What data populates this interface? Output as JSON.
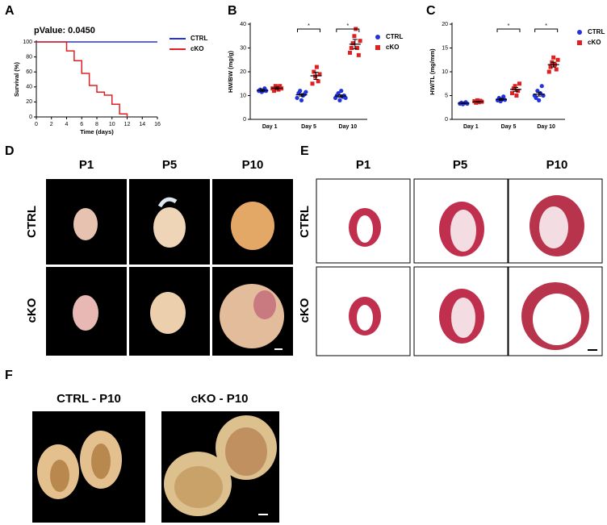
{
  "chart_data": [
    {
      "type": "line",
      "step": true,
      "title": "pValue: 0.0450",
      "xlabel": "Time (days)",
      "ylabel": "Survival (%)",
      "xlim": [
        0,
        16
      ],
      "xticks": [
        0,
        2,
        4,
        6,
        8,
        10,
        12,
        14,
        16
      ],
      "ylim": [
        0,
        100
      ],
      "yticks": [
        0,
        20,
        40,
        60,
        80,
        100
      ],
      "series": [
        {
          "name": "CTRL",
          "color": "#2233dd",
          "x": [
            0,
            16
          ],
          "values": [
            100,
            100
          ]
        },
        {
          "name": "cKO",
          "color": "#e02020",
          "x": [
            0,
            4,
            5,
            6,
            7,
            8,
            9,
            10,
            11,
            12
          ],
          "values": [
            100,
            88,
            75,
            58,
            42,
            33,
            29,
            17,
            4,
            0
          ]
        }
      ]
    },
    {
      "type": "scatter",
      "ylabel": "HW/BW (mg/g)",
      "categories": [
        "Day 1",
        "Day 5",
        "Day 10"
      ],
      "ylim": [
        0,
        40
      ],
      "yticks": [
        0,
        10,
        20,
        30,
        40
      ],
      "annotations": [
        null,
        "*",
        "*"
      ],
      "series": [
        {
          "name": "CTRL",
          "color": "#2233dd",
          "marker": "circle",
          "values": [
            [
              12,
              12.5,
              11.5,
              12,
              13,
              12
            ],
            [
              9,
              11,
              12,
              8,
              10,
              10.5,
              11.5
            ],
            [
              9,
              10,
              11,
              8,
              12,
              9.5,
              10,
              9
            ]
          ],
          "means": [
            12.2,
            10.3,
            9.8
          ],
          "errors": [
            0.4,
            0.5,
            0.5
          ]
        },
        {
          "name": "cKO",
          "color": "#e02020",
          "marker": "square",
          "values": [
            [
              13,
              12,
              14,
              13.5,
              12.5,
              14,
              13
            ],
            [
              15,
              20,
              18,
              22,
              16,
              19
            ],
            [
              28,
              30,
              32,
              35,
              38,
              30,
              27,
              33
            ]
          ],
          "means": [
            13.1,
            18.3,
            31.6
          ],
          "errors": [
            0.5,
            1.5,
            2
          ]
        }
      ]
    },
    {
      "type": "scatter",
      "ylabel": "HW/TL (mg/mm)",
      "categories": [
        "Day 1",
        "Day 5",
        "Day 10"
      ],
      "ylim": [
        0,
        20
      ],
      "yticks": [
        0,
        5,
        10,
        15,
        20
      ],
      "annotations": [
        null,
        "*",
        "*"
      ],
      "series": [
        {
          "name": "CTRL",
          "color": "#2233dd",
          "marker": "circle",
          "values": [
            [
              3.3,
              3.5,
              3.2,
              3.4,
              3.6,
              3.3
            ],
            [
              4,
              4.5,
              3.8,
              4.2,
              4.8,
              4.1
            ],
            [
              5,
              4.5,
              6,
              4,
              5.5,
              7,
              5
            ]
          ],
          "means": [
            3.4,
            4.2,
            5.3
          ],
          "errors": [
            0.1,
            0.2,
            0.4
          ]
        },
        {
          "name": "cKO",
          "color": "#e02020",
          "marker": "square",
          "values": [
            [
              3.8,
              3.5,
              4,
              3.6,
              3.9,
              3.7
            ],
            [
              5.5,
              6.5,
              7,
              5,
              6,
              7.5
            ],
            [
              10,
              11,
              12,
              13,
              11.5,
              10.5,
              12.5
            ]
          ],
          "means": [
            3.7,
            6.3,
            11.5
          ],
          "errors": [
            0.1,
            0.4,
            0.5
          ]
        }
      ]
    }
  ],
  "labels": [
    "A",
    "B",
    "C",
    "D",
    "E",
    "F"
  ],
  "heart_photos": {
    "columns": [
      "P1",
      "P5",
      "P10"
    ],
    "rows": [
      "CTRL",
      "cKO"
    ]
  },
  "histology": {
    "columns": [
      "P1",
      "P5",
      "P10"
    ],
    "rows": [
      "CTRL",
      "cKO"
    ]
  },
  "sections": {
    "titles": [
      "CTRL - P10",
      "cKO - P10"
    ]
  }
}
